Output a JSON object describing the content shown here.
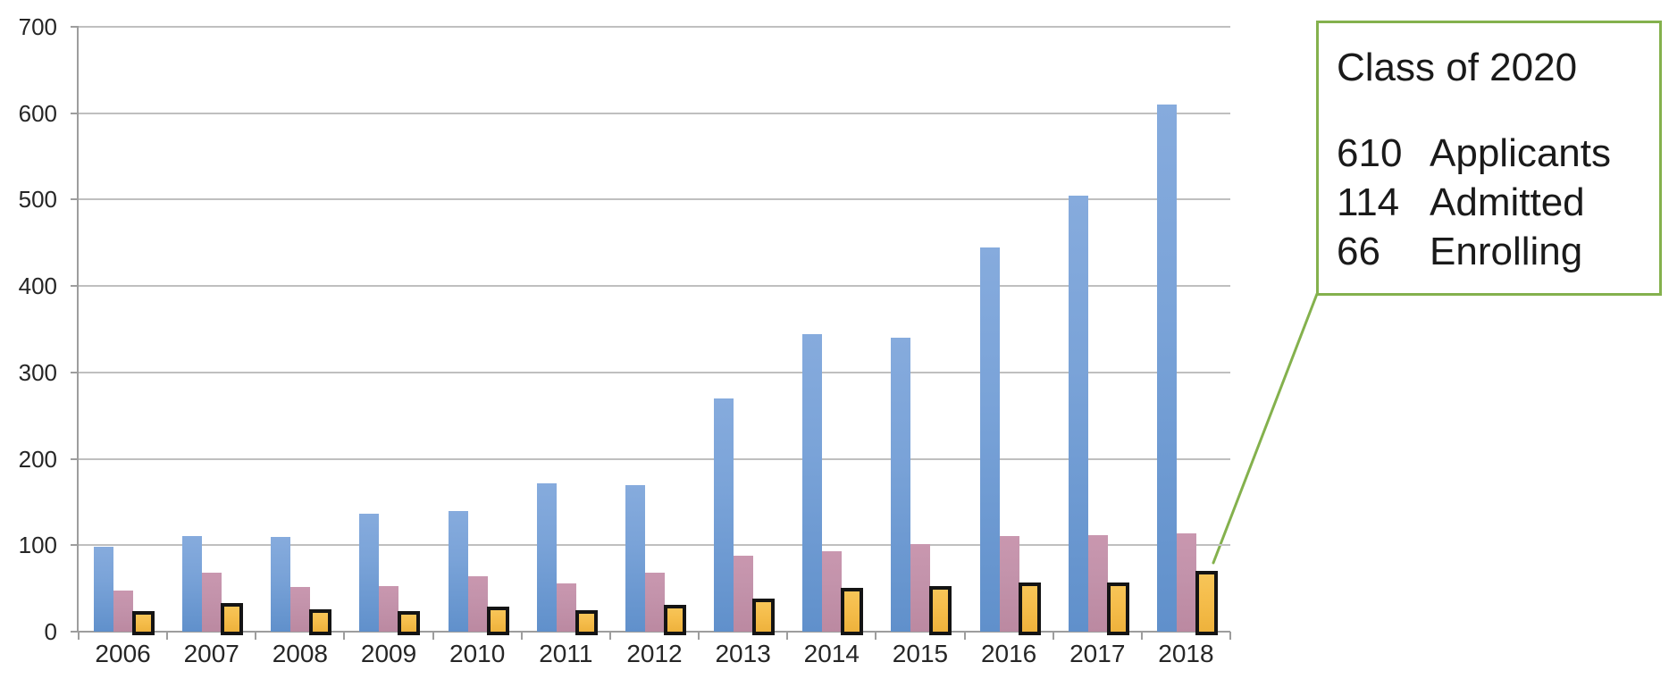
{
  "chart_data": {
    "type": "bar",
    "title": "",
    "xlabel": "",
    "ylabel": "",
    "categories": [
      "2006",
      "2007",
      "2008",
      "2009",
      "2010",
      "2011",
      "2012",
      "2013",
      "2014",
      "2015",
      "2016",
      "2017",
      "2018"
    ],
    "series": [
      {
        "name": "Applicants",
        "color": "#6f9ed7",
        "values": [
          98,
          111,
          110,
          137,
          140,
          172,
          170,
          270,
          344,
          340,
          445,
          505,
          610
        ]
      },
      {
        "name": "Admitted",
        "color": "#c393ab",
        "values": [
          48,
          68,
          52,
          53,
          64,
          56,
          68,
          88,
          93,
          101,
          111,
          112,
          114
        ]
      },
      {
        "name": "Enrolling",
        "color": "#f5bd4b",
        "values": [
          20,
          29,
          22,
          20,
          25,
          21,
          27,
          34,
          47,
          49,
          53,
          53,
          66
        ]
      }
    ],
    "ylim": [
      0,
      700
    ],
    "ytick_interval": 100,
    "grid": true,
    "legend_position": "none"
  },
  "callout": {
    "title": "Class of 2020",
    "items": [
      {
        "value": "610",
        "label": "Applicants"
      },
      {
        "value": "114",
        "label": "Admitted"
      },
      {
        "value": "66",
        "label": "Enrolling"
      }
    ]
  },
  "colors": {
    "applicants_bar": "#6f9ed7",
    "admitted_bar": "#c393ab",
    "enrolling_bar": "#f5bd4b",
    "enrolling_bar_border": "#141414",
    "gridline": "#bfbfbf",
    "axis": "#9d9d9d",
    "callout_border": "#84b14d",
    "leader_line": "#84b14d",
    "text": "#262626"
  }
}
